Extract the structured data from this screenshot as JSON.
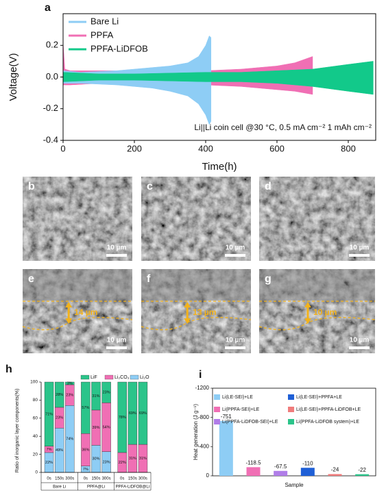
{
  "chart_data": [
    {
      "type": "band",
      "panel": "a",
      "xlabel": "Time(h)",
      "ylabel": "Voltage(V)",
      "annotation": "Li||Li coin cell @30 °C, 0.5 mA cm⁻² 1 mAh cm⁻²",
      "xlim": [
        0,
        877
      ],
      "xticks": [
        0,
        200,
        400,
        600,
        800
      ],
      "ylim": [
        -0.4,
        0.4
      ],
      "yticks": [
        -0.4,
        -0.2,
        {
          "value": 0,
          "label": "0.0"
        },
        0.2
      ],
      "series": [
        {
          "name": "Bare Li",
          "color": "#8ecdf5",
          "x": [
            0,
            50,
            100,
            150,
            200,
            250,
            300,
            350,
            380,
            400,
            410,
            415
          ],
          "values": [
            0.04,
            0.03,
            0.035,
            0.04,
            0.05,
            0.06,
            0.07,
            0.09,
            0.13,
            0.2,
            0.26,
            0.25
          ],
          "lower": [
            -0.04,
            -0.04,
            -0.045,
            -0.05,
            -0.06,
            -0.07,
            -0.09,
            -0.12,
            -0.17,
            -0.24,
            -0.3,
            -0.28
          ]
        },
        {
          "name": "PPFA",
          "color": "#f06fb4",
          "x": [
            0,
            5,
            20,
            100,
            200,
            300,
            400,
            500,
            600,
            650,
            700
          ],
          "values": [
            0.22,
            0.05,
            0.04,
            0.04,
            0.04,
            0.04,
            0.04,
            0.05,
            0.07,
            0.09,
            0.13
          ],
          "lower": [
            -0.05,
            -0.05,
            -0.05,
            -0.04,
            -0.04,
            -0.04,
            -0.05,
            -0.06,
            -0.08,
            -0.09,
            -0.11
          ]
        },
        {
          "name": "PPFA-LiDFOB",
          "color": "#12c98a",
          "x": [
            0,
            100,
            200,
            300,
            400,
            500,
            600,
            700,
            800,
            870
          ],
          "values": [
            0.03,
            0.02,
            0.02,
            0.025,
            0.03,
            0.03,
            0.04,
            0.05,
            0.08,
            0.1
          ],
          "lower": [
            -0.03,
            -0.02,
            -0.02,
            -0.025,
            -0.03,
            -0.03,
            -0.04,
            -0.06,
            -0.09,
            -0.11
          ]
        }
      ]
    },
    {
      "type": "stacked_bar",
      "panel": "h",
      "ylabel": "Ratio of inorganic layer components(%)",
      "categories": [
        "0s",
        "150s",
        "300s",
        "0s",
        "150s",
        "300s",
        "0s",
        "150s",
        "300s"
      ],
      "groups": [
        "Bare Li",
        "PPFA@Li",
        "PPFA-LiDFOB@Li"
      ],
      "ylim": [
        0,
        100
      ],
      "yticks": [
        0,
        20,
        40,
        60,
        80,
        100
      ],
      "series": [
        {
          "name": "LiF",
          "color": "#2bc48a",
          "values": [
            71,
            28,
            3,
            57,
            31,
            23,
            78,
            69,
            69
          ],
          "value_labels": [
            "71%",
            "28%",
            "3%",
            "57%",
            "31%",
            "23%",
            "78%",
            "69%",
            "69%"
          ]
        },
        {
          "name": "Li₂CO₃",
          "color": "#f06fb4",
          "values": [
            7,
            23,
            23,
            36,
            39,
            54,
            22,
            31,
            31
          ],
          "value_labels": [
            "7%",
            "23%",
            "23%",
            "36%",
            "39%",
            "54%",
            "22%",
            "31%",
            "31%"
          ]
        },
        {
          "name": "Li₂O",
          "color": "#8ecdf5",
          "values": [
            22,
            49,
            74,
            7,
            30,
            23,
            0,
            0,
            0
          ],
          "value_labels": [
            "22%",
            "49%",
            "74%",
            "7%",
            "30%",
            "23%",
            null,
            null,
            null
          ]
        }
      ]
    },
    {
      "type": "bar",
      "panel": "i",
      "xlabel": "Sample",
      "ylabel": "Heat generation (J g⁻¹)",
      "categories": [
        "Li(LE-SEI)+LE",
        "Li(PPFA-SEI)+LE",
        "Li(PPFA-LiDFOB-SEI)+LE",
        "Li(LE-SEI)+PPFA+LE",
        "Li(LE-SEI)+PPFA-LiDFOB+LE",
        "Li(PPFA-LiDFOB system)+LE"
      ],
      "values": [
        -751,
        -118.5,
        -67.5,
        -110,
        -24,
        -22
      ],
      "colors": [
        "#8ecdf5",
        "#f06fb4",
        "#b07de8",
        "#1f5fd6",
        "#f07c7c",
        "#2bc48a"
      ],
      "ylim": [
        0,
        -1200
      ],
      "yticks": [
        0,
        -400,
        -800,
        -1200
      ]
    }
  ],
  "images": [
    {
      "label": "b",
      "scale": "10 µm"
    },
    {
      "label": "c",
      "scale": "10 µm"
    },
    {
      "label": "d",
      "scale": "10 µm"
    },
    {
      "label": "e",
      "scale": "10 µm",
      "thickness": "14 µm"
    },
    {
      "label": "f",
      "scale": "10 µm",
      "thickness": "13 µm"
    },
    {
      "label": "g",
      "scale": "10 µm",
      "thickness": "10 µm"
    }
  ]
}
